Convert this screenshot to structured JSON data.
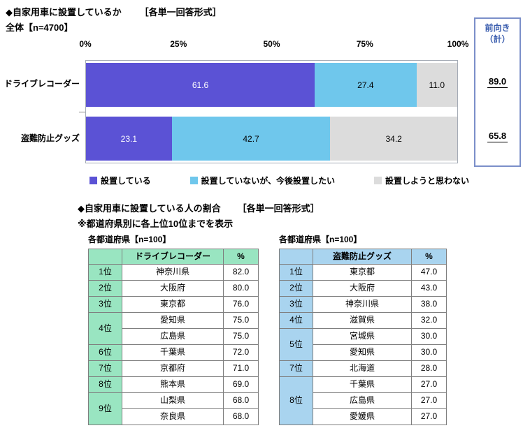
{
  "chart_section": {
    "title": "◆自家用車に設置しているか",
    "format_note": "［各単一回答形式］",
    "n_label": "全体【n=4700】",
    "axis_ticks": [
      "0%",
      "25%",
      "50%",
      "75%",
      "100%"
    ],
    "summary": {
      "header_line1": "前向き",
      "header_line2": "（計）",
      "values": [
        "89.0",
        "65.8"
      ]
    }
  },
  "chart_data": {
    "type": "bar",
    "stacked": true,
    "orientation": "horizontal",
    "xlim": [
      0,
      100
    ],
    "legend_position": "bottom",
    "categories": [
      "ドライブレコーダー",
      "盗難防止グッズ"
    ],
    "series": [
      {
        "name": "設置している",
        "values": [
          61.6,
          23.1
        ],
        "display": [
          "61.6",
          "23.1"
        ],
        "color": "#5b52d5",
        "text_color": "#ffffff"
      },
      {
        "name": "設置していないが、今後設置したい",
        "values": [
          27.4,
          42.7
        ],
        "display": [
          "27.4",
          "42.7"
        ],
        "color": "#6fc7ec",
        "text_color": "#000000"
      },
      {
        "name": "設置しようと思わない",
        "values": [
          11.0,
          34.2
        ],
        "display": [
          "11.0",
          "34.2"
        ],
        "color": "#dcdcdc",
        "text_color": "#000000"
      }
    ],
    "summary_column": {
      "header": "前向き（計）",
      "values": [
        89.0,
        65.8
      ]
    }
  },
  "tables_section": {
    "title": "◆自家用車に設置している人の割合",
    "format_note": "［各単一回答形式］",
    "note": "※都道府県別に各上位10位までを表示",
    "left_table": {
      "caption": "各都道府県【n=100】",
      "header": [
        "ドライブレコーダー",
        "%"
      ],
      "groups": [
        {
          "rank": "1位",
          "entries": [
            {
              "pref": "神奈川県",
              "value": "82.0"
            }
          ]
        },
        {
          "rank": "2位",
          "entries": [
            {
              "pref": "大阪府",
              "value": "80.0"
            }
          ]
        },
        {
          "rank": "3位",
          "entries": [
            {
              "pref": "東京都",
              "value": "76.0"
            }
          ]
        },
        {
          "rank": "4位",
          "entries": [
            {
              "pref": "愛知県",
              "value": "75.0"
            },
            {
              "pref": "広島県",
              "value": "75.0"
            }
          ]
        },
        {
          "rank": "6位",
          "entries": [
            {
              "pref": "千葉県",
              "value": "72.0"
            }
          ]
        },
        {
          "rank": "7位",
          "entries": [
            {
              "pref": "京都府",
              "value": "71.0"
            }
          ]
        },
        {
          "rank": "8位",
          "entries": [
            {
              "pref": "熊本県",
              "value": "69.0"
            }
          ]
        },
        {
          "rank": "9位",
          "entries": [
            {
              "pref": "山梨県",
              "value": "68.0"
            },
            {
              "pref": "奈良県",
              "value": "68.0"
            }
          ]
        }
      ]
    },
    "right_table": {
      "caption": "各都道府県【n=100】",
      "header": [
        "盗難防止グッズ",
        "%"
      ],
      "groups": [
        {
          "rank": "1位",
          "entries": [
            {
              "pref": "東京都",
              "value": "47.0"
            }
          ]
        },
        {
          "rank": "2位",
          "entries": [
            {
              "pref": "大阪府",
              "value": "43.0"
            }
          ]
        },
        {
          "rank": "3位",
          "entries": [
            {
              "pref": "神奈川県",
              "value": "38.0"
            }
          ]
        },
        {
          "rank": "4位",
          "entries": [
            {
              "pref": "滋賀県",
              "value": "32.0"
            }
          ]
        },
        {
          "rank": "5位",
          "entries": [
            {
              "pref": "宮城県",
              "value": "30.0"
            },
            {
              "pref": "愛知県",
              "value": "30.0"
            }
          ]
        },
        {
          "rank": "7位",
          "entries": [
            {
              "pref": "北海道",
              "value": "28.0"
            }
          ]
        },
        {
          "rank": "8位",
          "entries": [
            {
              "pref": "千葉県",
              "value": "27.0"
            },
            {
              "pref": "広島県",
              "value": "27.0"
            },
            {
              "pref": "愛媛県",
              "value": "27.0"
            }
          ]
        }
      ]
    }
  },
  "colors": {
    "series_installed": "#5b52d5",
    "series_want_to_install": "#6fc7ec",
    "series_no_intention": "#dcdcdc",
    "summary_box_border": "#7b8fc9",
    "summary_header_text": "#3a5dae",
    "left_table_accent": "#99e5c1",
    "right_table_accent": "#a9d4ef",
    "table_border": "#7f7f7f"
  }
}
